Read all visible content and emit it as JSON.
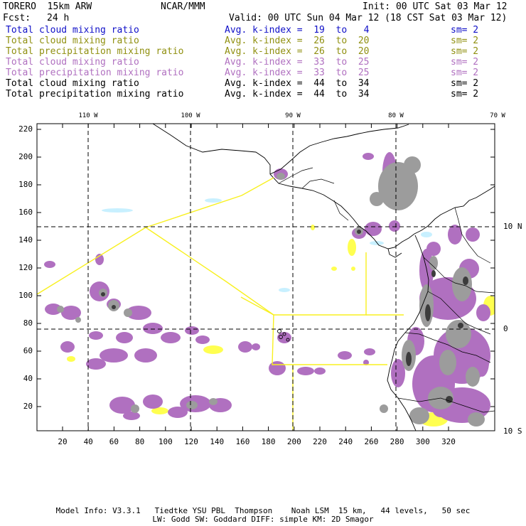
{
  "header": {
    "model": "TORERO  15km ARW",
    "org": "NCAR/MMM",
    "init": "Init: 00 UTC Sat 03 Mar 12",
    "fcst_label": "Fcst:",
    "fcst_value": "24 h",
    "valid": "Valid: 00 UTC Sun 04 Mar 12 (18 CST Sat 03 Mar 12)"
  },
  "legend": [
    {
      "field": "Total cloud mixing ratio",
      "kindex": "Avg. k-index =  19  to   4",
      "sm": "sm= 2",
      "color": "#1010c8"
    },
    {
      "field": "Total cloud mixing ratio",
      "kindex": "Avg. k-index =  26  to  20",
      "sm": "sm= 2",
      "color": "#909010"
    },
    {
      "field": "Total precipitation mixing ratio",
      "kindex": "Avg. k-index =  26  to  20",
      "sm": "sm= 2",
      "color": "#909010"
    },
    {
      "field": "Total cloud mixing ratio",
      "kindex": "Avg. k-index =  33  to  25",
      "sm": "sm= 2",
      "color": "#b070c0"
    },
    {
      "field": "Total precipitation mixing ratio",
      "kindex": "Avg. k-index =  33  to  25",
      "sm": "sm= 2",
      "color": "#b070c0"
    },
    {
      "field": "Total cloud mixing ratio",
      "kindex": "Avg. k-index =  44  to  34",
      "sm": "sm= 2",
      "color": "#000000"
    },
    {
      "field": "Total precipitation mixing ratio",
      "kindex": "Avg. k-index =  44  to  34",
      "sm": "sm= 2",
      "color": "#000000"
    }
  ],
  "map": {
    "lon_labels": [
      "110 W",
      "100 W",
      "90 W",
      "80 W",
      "70 W"
    ],
    "lat_labels": [
      "10 N",
      "0",
      "10 S"
    ],
    "y_ticks": [
      "220",
      "200",
      "180",
      "160",
      "140",
      "120",
      "100",
      "80",
      "60",
      "40",
      "20"
    ],
    "x_ticks": [
      "20",
      "40",
      "60",
      "80",
      "100",
      "120",
      "140",
      "160",
      "180",
      "200",
      "220",
      "240",
      "260",
      "280",
      "300",
      "320"
    ],
    "colors": {
      "purple": "#b070c0",
      "gray": "#9c9c9c",
      "dark": "#3c3c3c",
      "yellow": "#ffff50",
      "cyan": "#c8f0ff",
      "boundary_yellow": "#f8f020"
    }
  },
  "footer": {
    "line1": "Model Info: V3.3.1   Tiedtke YSU PBL  Thompson    Noah LSM  15 km,   44 levels,   50 sec",
    "line2": "LW: Godd SW: Goddard DIFF: simple KM: 2D Smagor"
  }
}
